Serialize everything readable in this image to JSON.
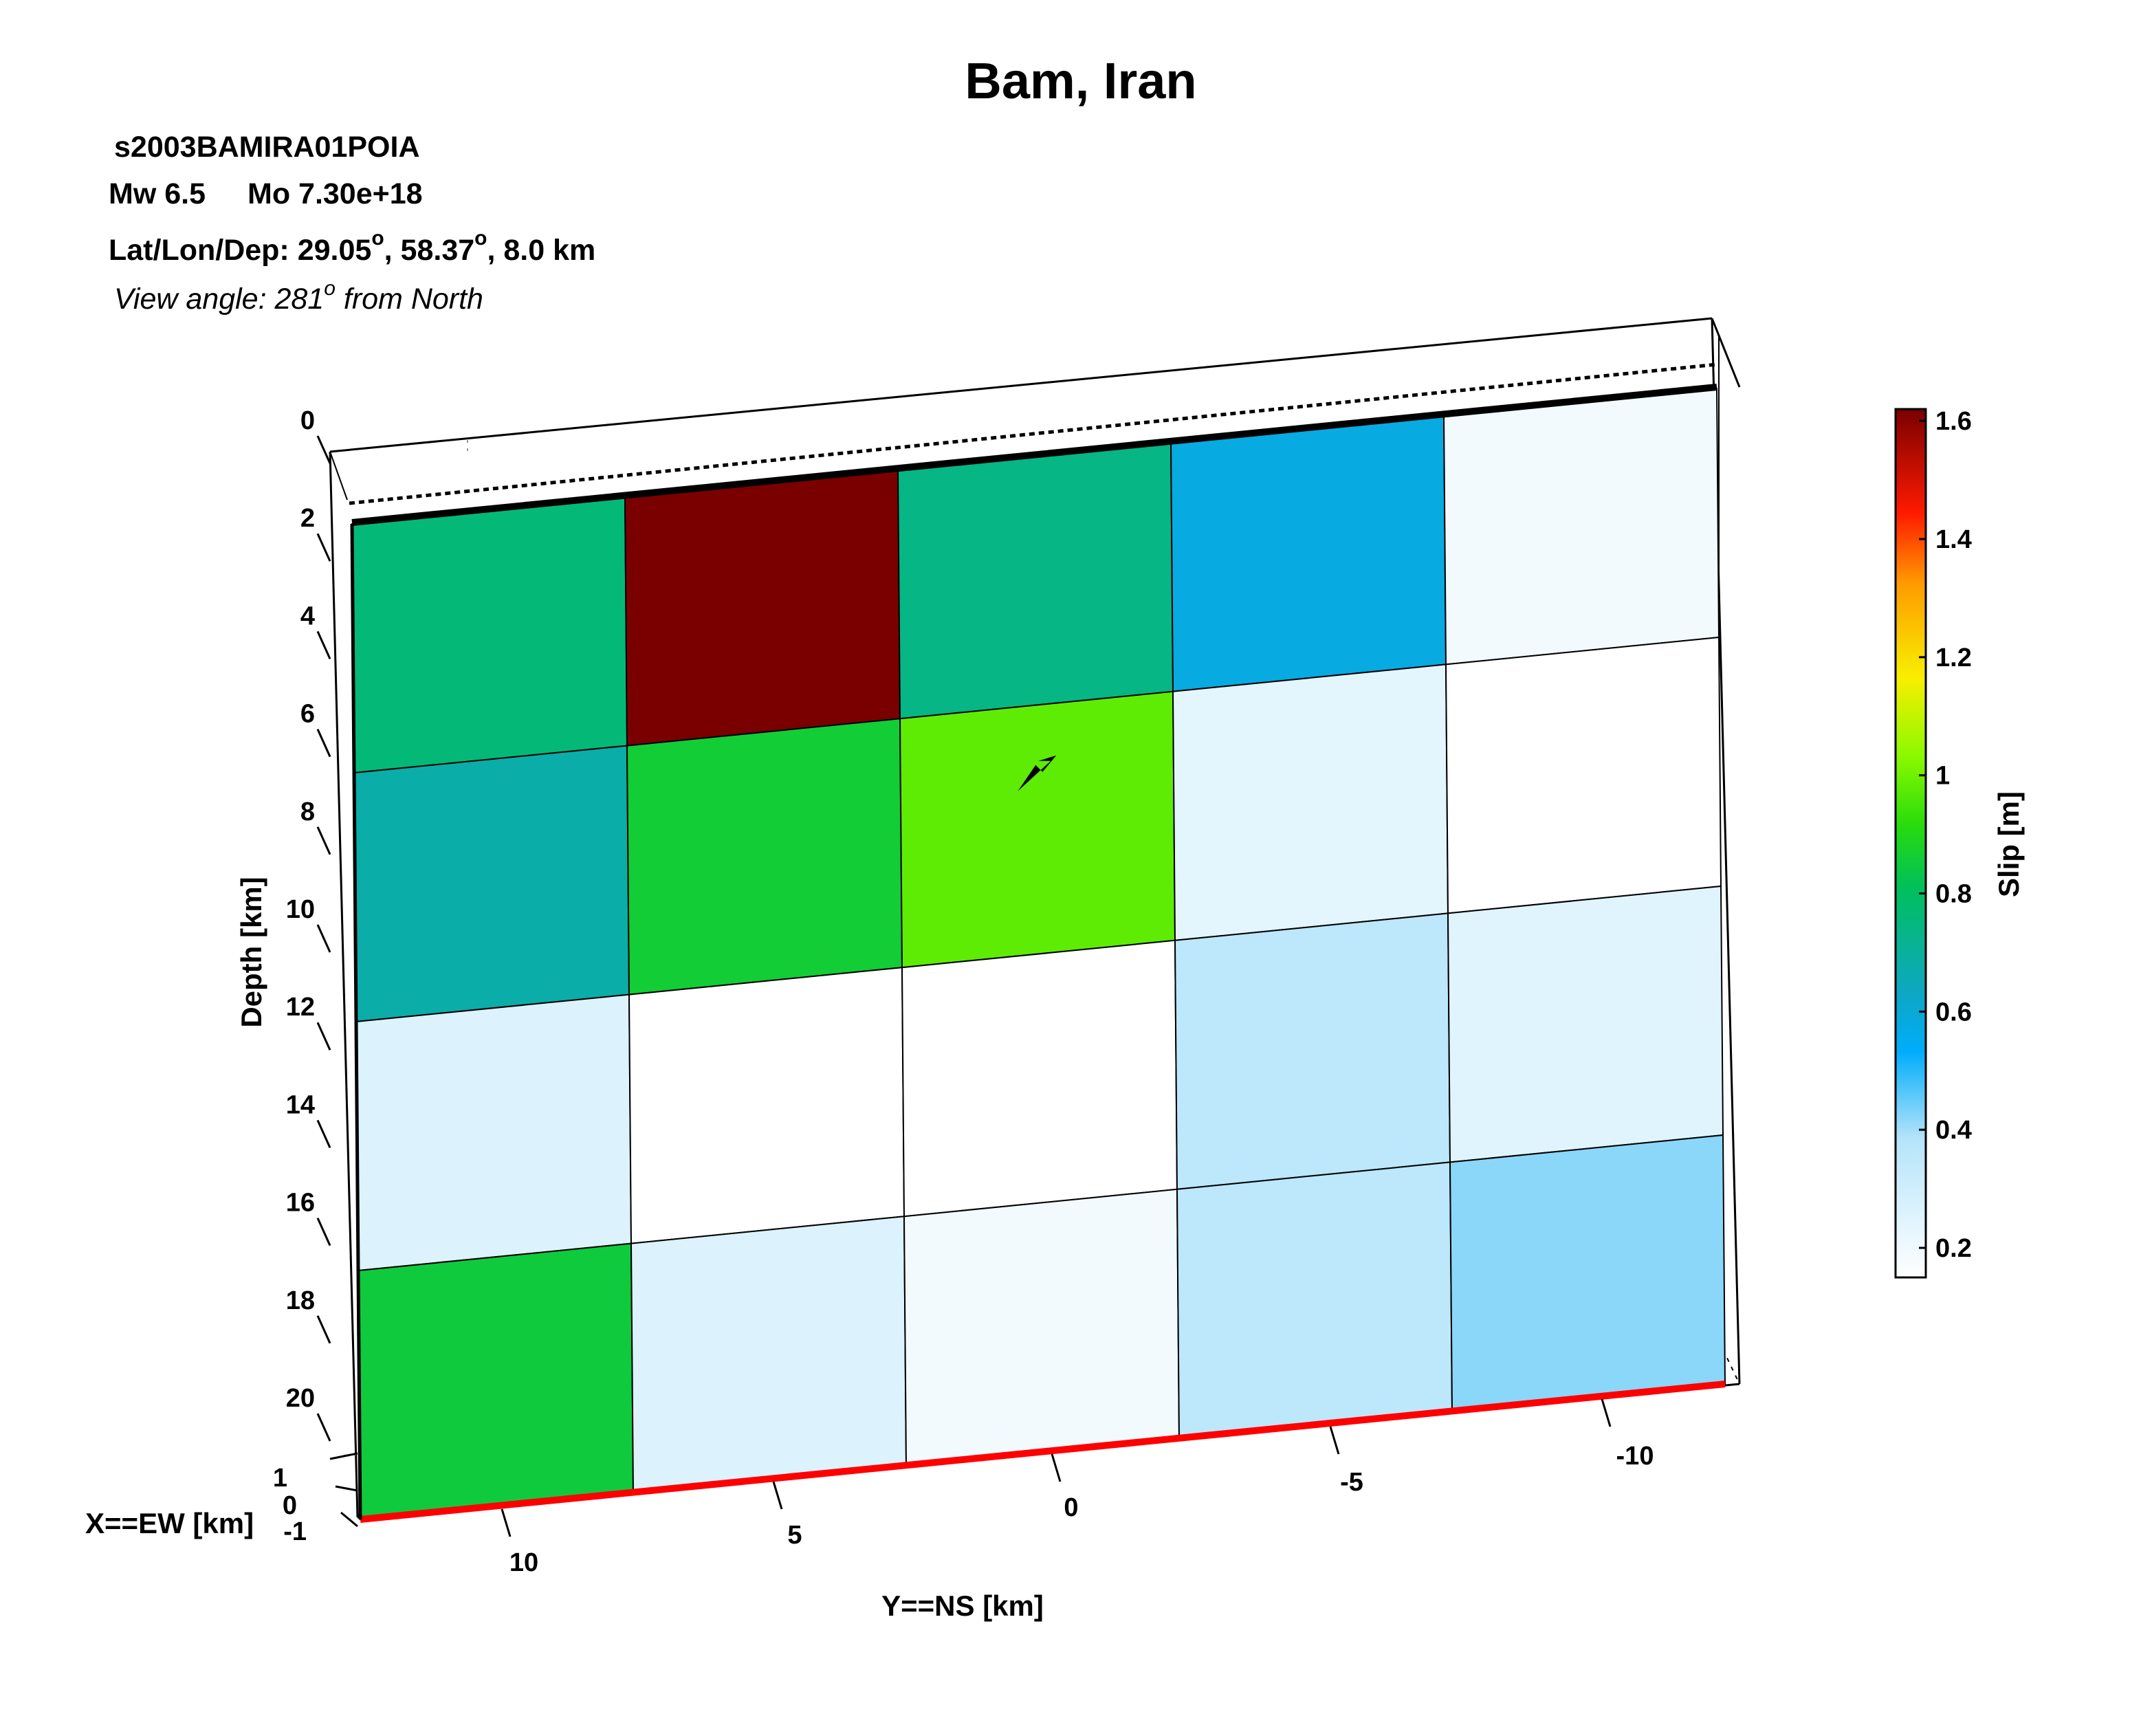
{
  "chart_data": {
    "type": "heatmap",
    "title": "Bam, Iran",
    "event_id": "s2003BAMIRA01POIA",
    "magnitude_line": {
      "mw": "Mw 6.5",
      "mo": "Mo 7.30e+18"
    },
    "location": {
      "prefix": "Lat/Lon/Dep: ",
      "lat": "29.05",
      "lon": "58.37",
      "dep": "8.0 km",
      "deg": "o"
    },
    "view": {
      "prefix": "View angle: 281",
      "sup": "o",
      "suffix": " from North"
    },
    "zlabel": "Depth [km]",
    "xlabel": "X==EW [km]",
    "ylabel": "Y==NS [km]",
    "colorbar_label": "Slip [m]",
    "depth_ticks": [
      "0",
      "2",
      "4",
      "6",
      "8",
      "10",
      "12",
      "14",
      "16",
      "18",
      "20"
    ],
    "x_ticks": [
      "1",
      "0",
      "-1"
    ],
    "ns_ticks": [
      "10",
      "5",
      "0",
      "-5",
      "-10"
    ],
    "colorbar_ticks": [
      "1.6",
      "1.4",
      "1.2",
      "1",
      "0.8",
      "0.6",
      "0.4",
      "0.2"
    ],
    "colorbar_range": [
      0.15,
      1.62
    ],
    "grid": {
      "rows": 4,
      "cols": 5,
      "depth_top": 2,
      "depth_bottom": 21,
      "ns_start": 12,
      "ns_end": -12
    },
    "slip_m": [
      [
        0.76,
        1.62,
        0.74,
        0.58,
        0.19
      ],
      [
        0.68,
        0.86,
        0.98,
        0.24,
        0.15
      ],
      [
        0.26,
        0.15,
        0.15,
        0.36,
        0.25
      ],
      [
        0.85,
        0.26,
        0.19,
        0.36,
        0.42
      ]
    ],
    "colorscale": [
      [
        0.0,
        "#ffffff"
      ],
      [
        0.16,
        "#b5e4fa"
      ],
      [
        0.26,
        "#00adfb"
      ],
      [
        0.33,
        "#0ea7c2"
      ],
      [
        0.45,
        "#00c05a"
      ],
      [
        0.52,
        "#27db0c"
      ],
      [
        0.6,
        "#8af900"
      ],
      [
        0.69,
        "#f8ef00"
      ],
      [
        0.8,
        "#ff9a00"
      ],
      [
        0.88,
        "#ff1a00"
      ],
      [
        1.0,
        "#7a0000"
      ]
    ],
    "hypocenter": {
      "ns": 0,
      "depth": 8
    },
    "colors": {
      "bottom_edge": "#ff0000",
      "top_edge": "#000000"
    }
  }
}
